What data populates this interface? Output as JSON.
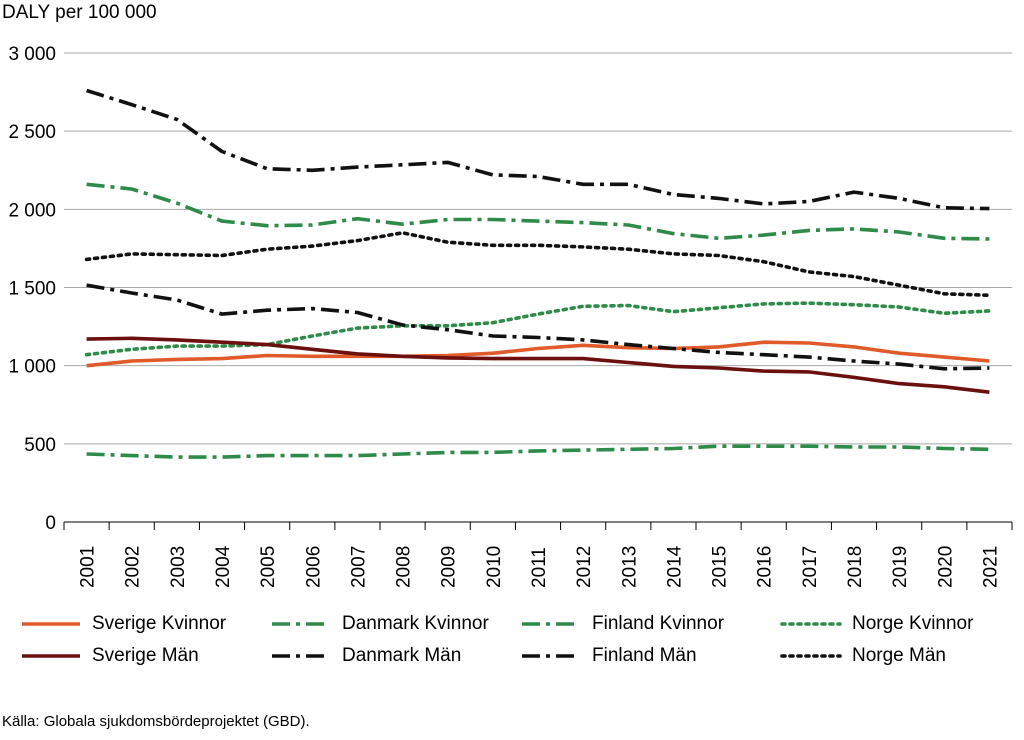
{
  "source_text": "Källa: Globala sjukdomsbördeprojektet (GBD).",
  "chart_data": {
    "type": "line",
    "title": "",
    "ylabel": "DALY per 100 000",
    "xlabel": "",
    "ylim": [
      0,
      3000
    ],
    "yticks": [
      0,
      500,
      1000,
      1500,
      2000,
      2500,
      3000
    ],
    "ytick_labels": [
      "0",
      "500",
      "1 000",
      "1 500",
      "2 000",
      "2 500",
      "3 000"
    ],
    "categories": [
      "2001",
      "2002",
      "2003",
      "2004",
      "2005",
      "2006",
      "2007",
      "2008",
      "2009",
      "2010",
      "2011",
      "2012",
      "2013",
      "2014",
      "2015",
      "2016",
      "2017",
      "2018",
      "2019",
      "2020",
      "2021"
    ],
    "grid": true,
    "legend_position": "bottom",
    "series": [
      {
        "name": "Sverige Kvinnor",
        "color": "#e05a2a",
        "style": "solid",
        "values": [
          1000,
          1030,
          1040,
          1045,
          1065,
          1060,
          1060,
          1060,
          1065,
          1080,
          1110,
          1130,
          1115,
          1110,
          1120,
          1150,
          1145,
          1120,
          1080,
          1055,
          1030
        ]
      },
      {
        "name": "Danmark Kvinnor",
        "color": "#2e8b4a",
        "style": "dashdot",
        "values": [
          2160,
          2130,
          2040,
          1925,
          1895,
          1900,
          1940,
          1905,
          1935,
          1935,
          1925,
          1915,
          1900,
          1845,
          1815,
          1835,
          1865,
          1875,
          1855,
          1815,
          1810
        ]
      },
      {
        "name": "Finland Kvinnor",
        "color": "#2e8b4a",
        "style": "dashdot",
        "values": [
          435,
          425,
          415,
          415,
          425,
          425,
          425,
          435,
          445,
          445,
          455,
          460,
          465,
          470,
          485,
          485,
          485,
          480,
          480,
          470,
          465
        ]
      },
      {
        "name": "Norge Kvinnor",
        "color": "#2e8b4a",
        "style": "dotted",
        "values": [
          1070,
          1105,
          1125,
          1125,
          1135,
          1190,
          1240,
          1255,
          1255,
          1275,
          1330,
          1380,
          1385,
          1345,
          1370,
          1395,
          1400,
          1390,
          1375,
          1335,
          1350
        ]
      },
      {
        "name": "Sverige Män",
        "color": "#6b0f0f",
        "style": "solid",
        "values": [
          1170,
          1175,
          1165,
          1150,
          1135,
          1105,
          1075,
          1060,
          1050,
          1045,
          1045,
          1045,
          1020,
          995,
          985,
          965,
          960,
          925,
          885,
          865,
          830
        ]
      },
      {
        "name": "Danmark Män",
        "color": "#111111",
        "style": "dashdot",
        "values": [
          2760,
          2670,
          2575,
          2370,
          2260,
          2250,
          2270,
          2285,
          2300,
          2220,
          2210,
          2160,
          2160,
          2095,
          2070,
          2035,
          2050,
          2110,
          2070,
          2010,
          2005
        ]
      },
      {
        "name": "Finland Män",
        "color": "#111111",
        "style": "dashdot",
        "values": [
          1515,
          1465,
          1420,
          1330,
          1355,
          1365,
          1340,
          1260,
          1230,
          1190,
          1180,
          1165,
          1135,
          1110,
          1085,
          1070,
          1055,
          1030,
          1010,
          980,
          985
        ]
      },
      {
        "name": "Norge Män",
        "color": "#111111",
        "style": "dotted",
        "values": [
          1680,
          1715,
          1710,
          1705,
          1745,
          1765,
          1800,
          1850,
          1790,
          1770,
          1770,
          1760,
          1745,
          1715,
          1705,
          1665,
          1600,
          1570,
          1515,
          1460,
          1450
        ]
      }
    ]
  }
}
